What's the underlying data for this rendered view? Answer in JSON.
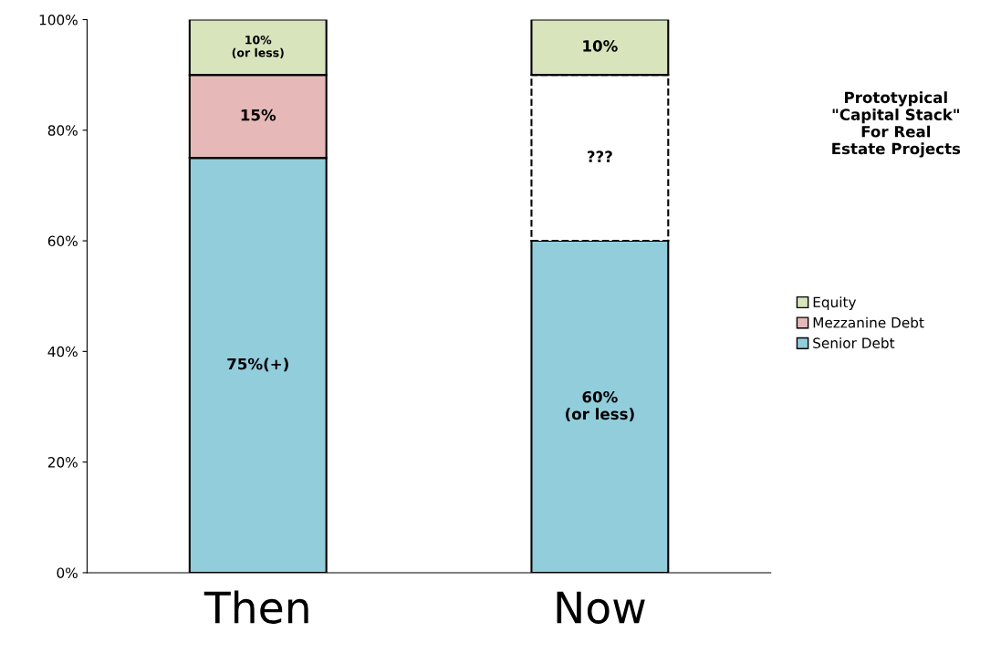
{
  "chart_data": {
    "type": "bar",
    "stacked": true,
    "categories": [
      "Then",
      "Now"
    ],
    "series": [
      {
        "name": "Senior Debt",
        "color": "#92cddc",
        "values": [
          75,
          60
        ],
        "value_labels": [
          "75%(+)",
          "60%\n(or less)"
        ]
      },
      {
        "name": "Mezzanine Debt",
        "color": "#e6b9b8",
        "values": [
          15,
          null
        ],
        "value_labels": [
          "15%",
          null
        ]
      },
      {
        "color": "#ffffff",
        "values": [
          null,
          30
        ],
        "value_labels": [
          null,
          "???"
        ],
        "line_style": "dashed"
      },
      {
        "name": "Equity",
        "color": "#d7e4bc",
        "values": [
          10,
          10
        ],
        "value_labels": [
          "10%\n(or less)",
          "10%"
        ]
      }
    ],
    "ylim": [
      0,
      100
    ],
    "yticks": [
      {
        "value": 0,
        "label": "0%"
      },
      {
        "value": 20,
        "label": "20%"
      },
      {
        "value": 40,
        "label": "40%"
      },
      {
        "value": 60,
        "label": "60%"
      },
      {
        "value": 80,
        "label": "80%"
      },
      {
        "value": 100,
        "label": "100%"
      }
    ],
    "grid": false,
    "legend": "right",
    "annotations": [
      "Prototypical\n\"Capital Stack\"\nFor Real\nEstate Projects"
    ]
  }
}
